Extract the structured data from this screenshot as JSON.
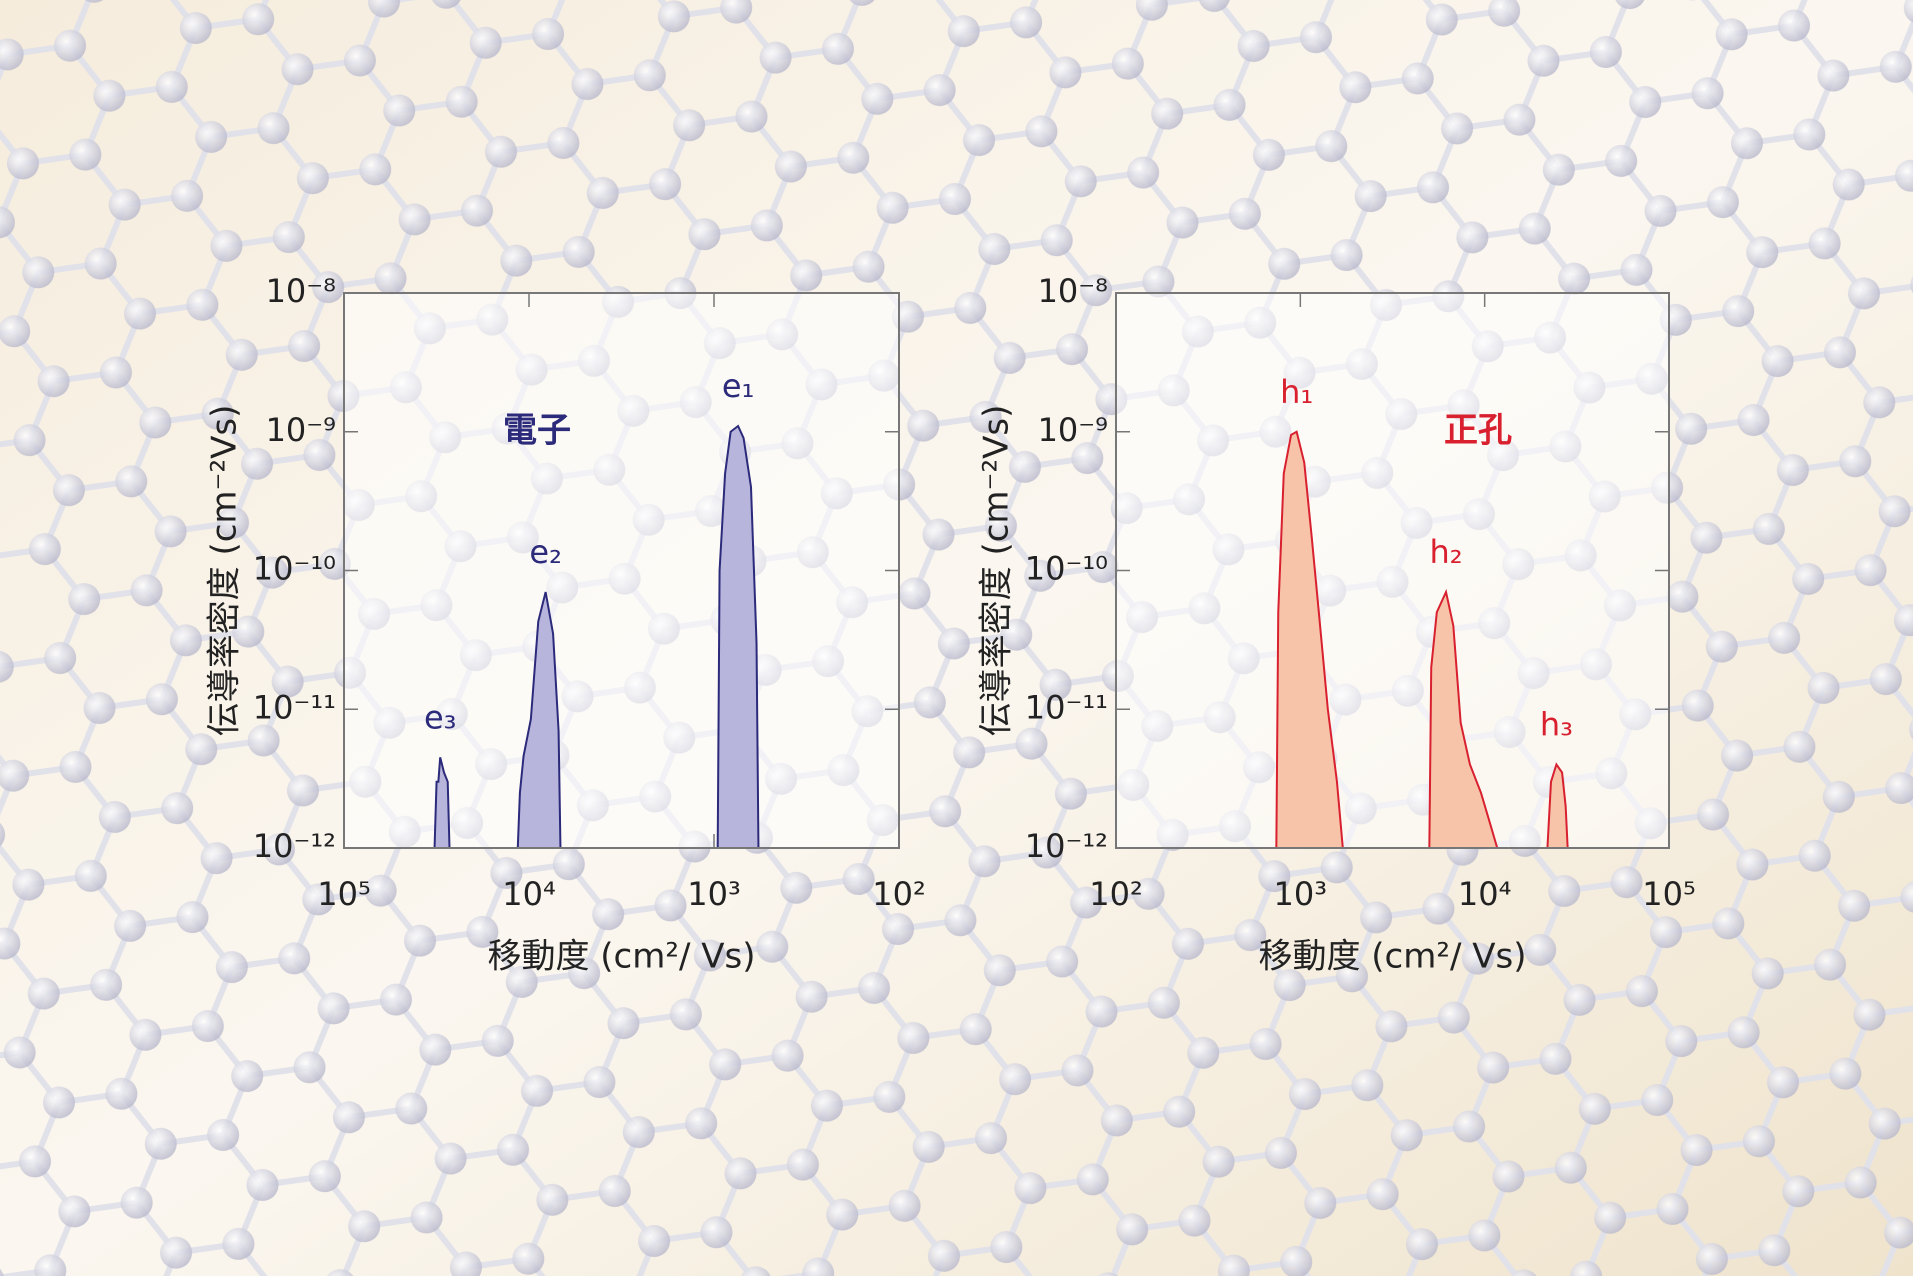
{
  "chart_data": [
    {
      "type": "area",
      "x_scale": "log",
      "y_scale": "log",
      "xlabel": "移動度 (cm²/ Vs)",
      "ylabel": "伝導率密度 (cm⁻²Vs)",
      "annotation": "電子",
      "annotation_color": "#2c2a7a",
      "xlim": [
        100000,
        100
      ],
      "xticks": [
        {
          "value": 100000,
          "label": "10⁵"
        },
        {
          "value": 10000,
          "label": "10⁴"
        },
        {
          "value": 1000,
          "label": "10³"
        },
        {
          "value": 100,
          "label": "10²"
        }
      ],
      "ylim": [
        1e-12,
        1e-08
      ],
      "yticks": [
        {
          "value": 1e-12,
          "label": "10⁻¹²"
        },
        {
          "value": 1e-11,
          "label": "10⁻¹¹"
        },
        {
          "value": 1e-10,
          "label": "10⁻¹⁰"
        },
        {
          "value": 1e-09,
          "label": "10⁻⁹"
        },
        {
          "value": 1e-08,
          "label": "10⁻⁸"
        }
      ],
      "series": [
        {
          "name": "e₁",
          "color": "#2c2a7a",
          "fill": "#b7b5dc",
          "x": [
            575,
            589,
            631,
            692,
            741,
            813,
            871,
            933,
            955
          ],
          "values": [
            1e-12,
            3e-11,
            4e-10,
            9e-10,
            1.1e-09,
            1e-09,
            5e-10,
            1e-10,
            1e-12
          ]
        },
        {
          "name": "e₂",
          "color": "#2c2a7a",
          "fill": "#b7b5dc",
          "x": [
            6760,
            6920,
            7410,
            8130,
            8910,
            9770,
            10700,
            11200,
            11500
          ],
          "values": [
            1e-12,
            7e-12,
            3.5e-11,
            7e-11,
            4.3e-11,
            8.5e-12,
            4.6e-12,
            2.5e-12,
            1e-12
          ]
        },
        {
          "name": "e₃",
          "color": "#2c2a7a",
          "fill": "#b7b5dc",
          "x": [
            26900,
            27500,
            28800,
            30200,
            30900,
            31600,
            32400
          ],
          "values": [
            1e-12,
            3e-12,
            3.5e-12,
            4.5e-12,
            3e-12,
            3e-12,
            1e-12
          ]
        }
      ]
    },
    {
      "type": "area",
      "x_scale": "log",
      "y_scale": "log",
      "xlabel": "移動度 (cm²/ Vs)",
      "ylabel": "伝導率密度 (cm⁻²Vs)",
      "annotation": "正孔",
      "annotation_color": "#d8202f",
      "xlim": [
        100,
        100000
      ],
      "xticks": [
        {
          "value": 100,
          "label": "10²"
        },
        {
          "value": 1000,
          "label": "10³"
        },
        {
          "value": 10000,
          "label": "10⁴"
        },
        {
          "value": 100000,
          "label": "10⁵"
        }
      ],
      "ylim": [
        1e-12,
        1e-08
      ],
      "yticks": [
        {
          "value": 1e-12,
          "label": "10⁻¹²"
        },
        {
          "value": 1e-11,
          "label": "10⁻¹¹"
        },
        {
          "value": 1e-10,
          "label": "10⁻¹⁰"
        },
        {
          "value": 1e-09,
          "label": "10⁻⁹"
        },
        {
          "value": 1e-08,
          "label": "10⁻⁸"
        }
      ],
      "series": [
        {
          "name": "h₁",
          "color": "#d8202f",
          "fill": "#f7c4aa",
          "x": [
            741,
            759,
            813,
            891,
            955,
            1050,
            1150,
            1260,
            1410,
            1580,
            1700
          ],
          "values": [
            1e-12,
            5e-11,
            5e-10,
            9.5e-10,
            1e-09,
            6e-10,
            1.8e-10,
            5e-11,
            1e-11,
            3e-12,
            1e-12
          ]
        },
        {
          "name": "h₂",
          "color": "#d8202f",
          "fill": "#f7c4aa",
          "x": [
            5010,
            5130,
            5500,
            6170,
            6760,
            7410,
            8320,
            9550,
            10700,
            11700
          ],
          "values": [
            1e-12,
            2e-11,
            5e-11,
            7e-11,
            4e-11,
            8e-12,
            4e-12,
            2.5e-12,
            1.5e-12,
            1e-12
          ]
        },
        {
          "name": "h₃",
          "color": "#d8202f",
          "fill": "#f7c4aa",
          "x": [
            21900,
            22900,
            24500,
            26300,
            27500,
            28200
          ],
          "values": [
            1e-12,
            3e-12,
            4e-12,
            3.5e-12,
            2e-12,
            1e-12
          ]
        }
      ]
    }
  ]
}
